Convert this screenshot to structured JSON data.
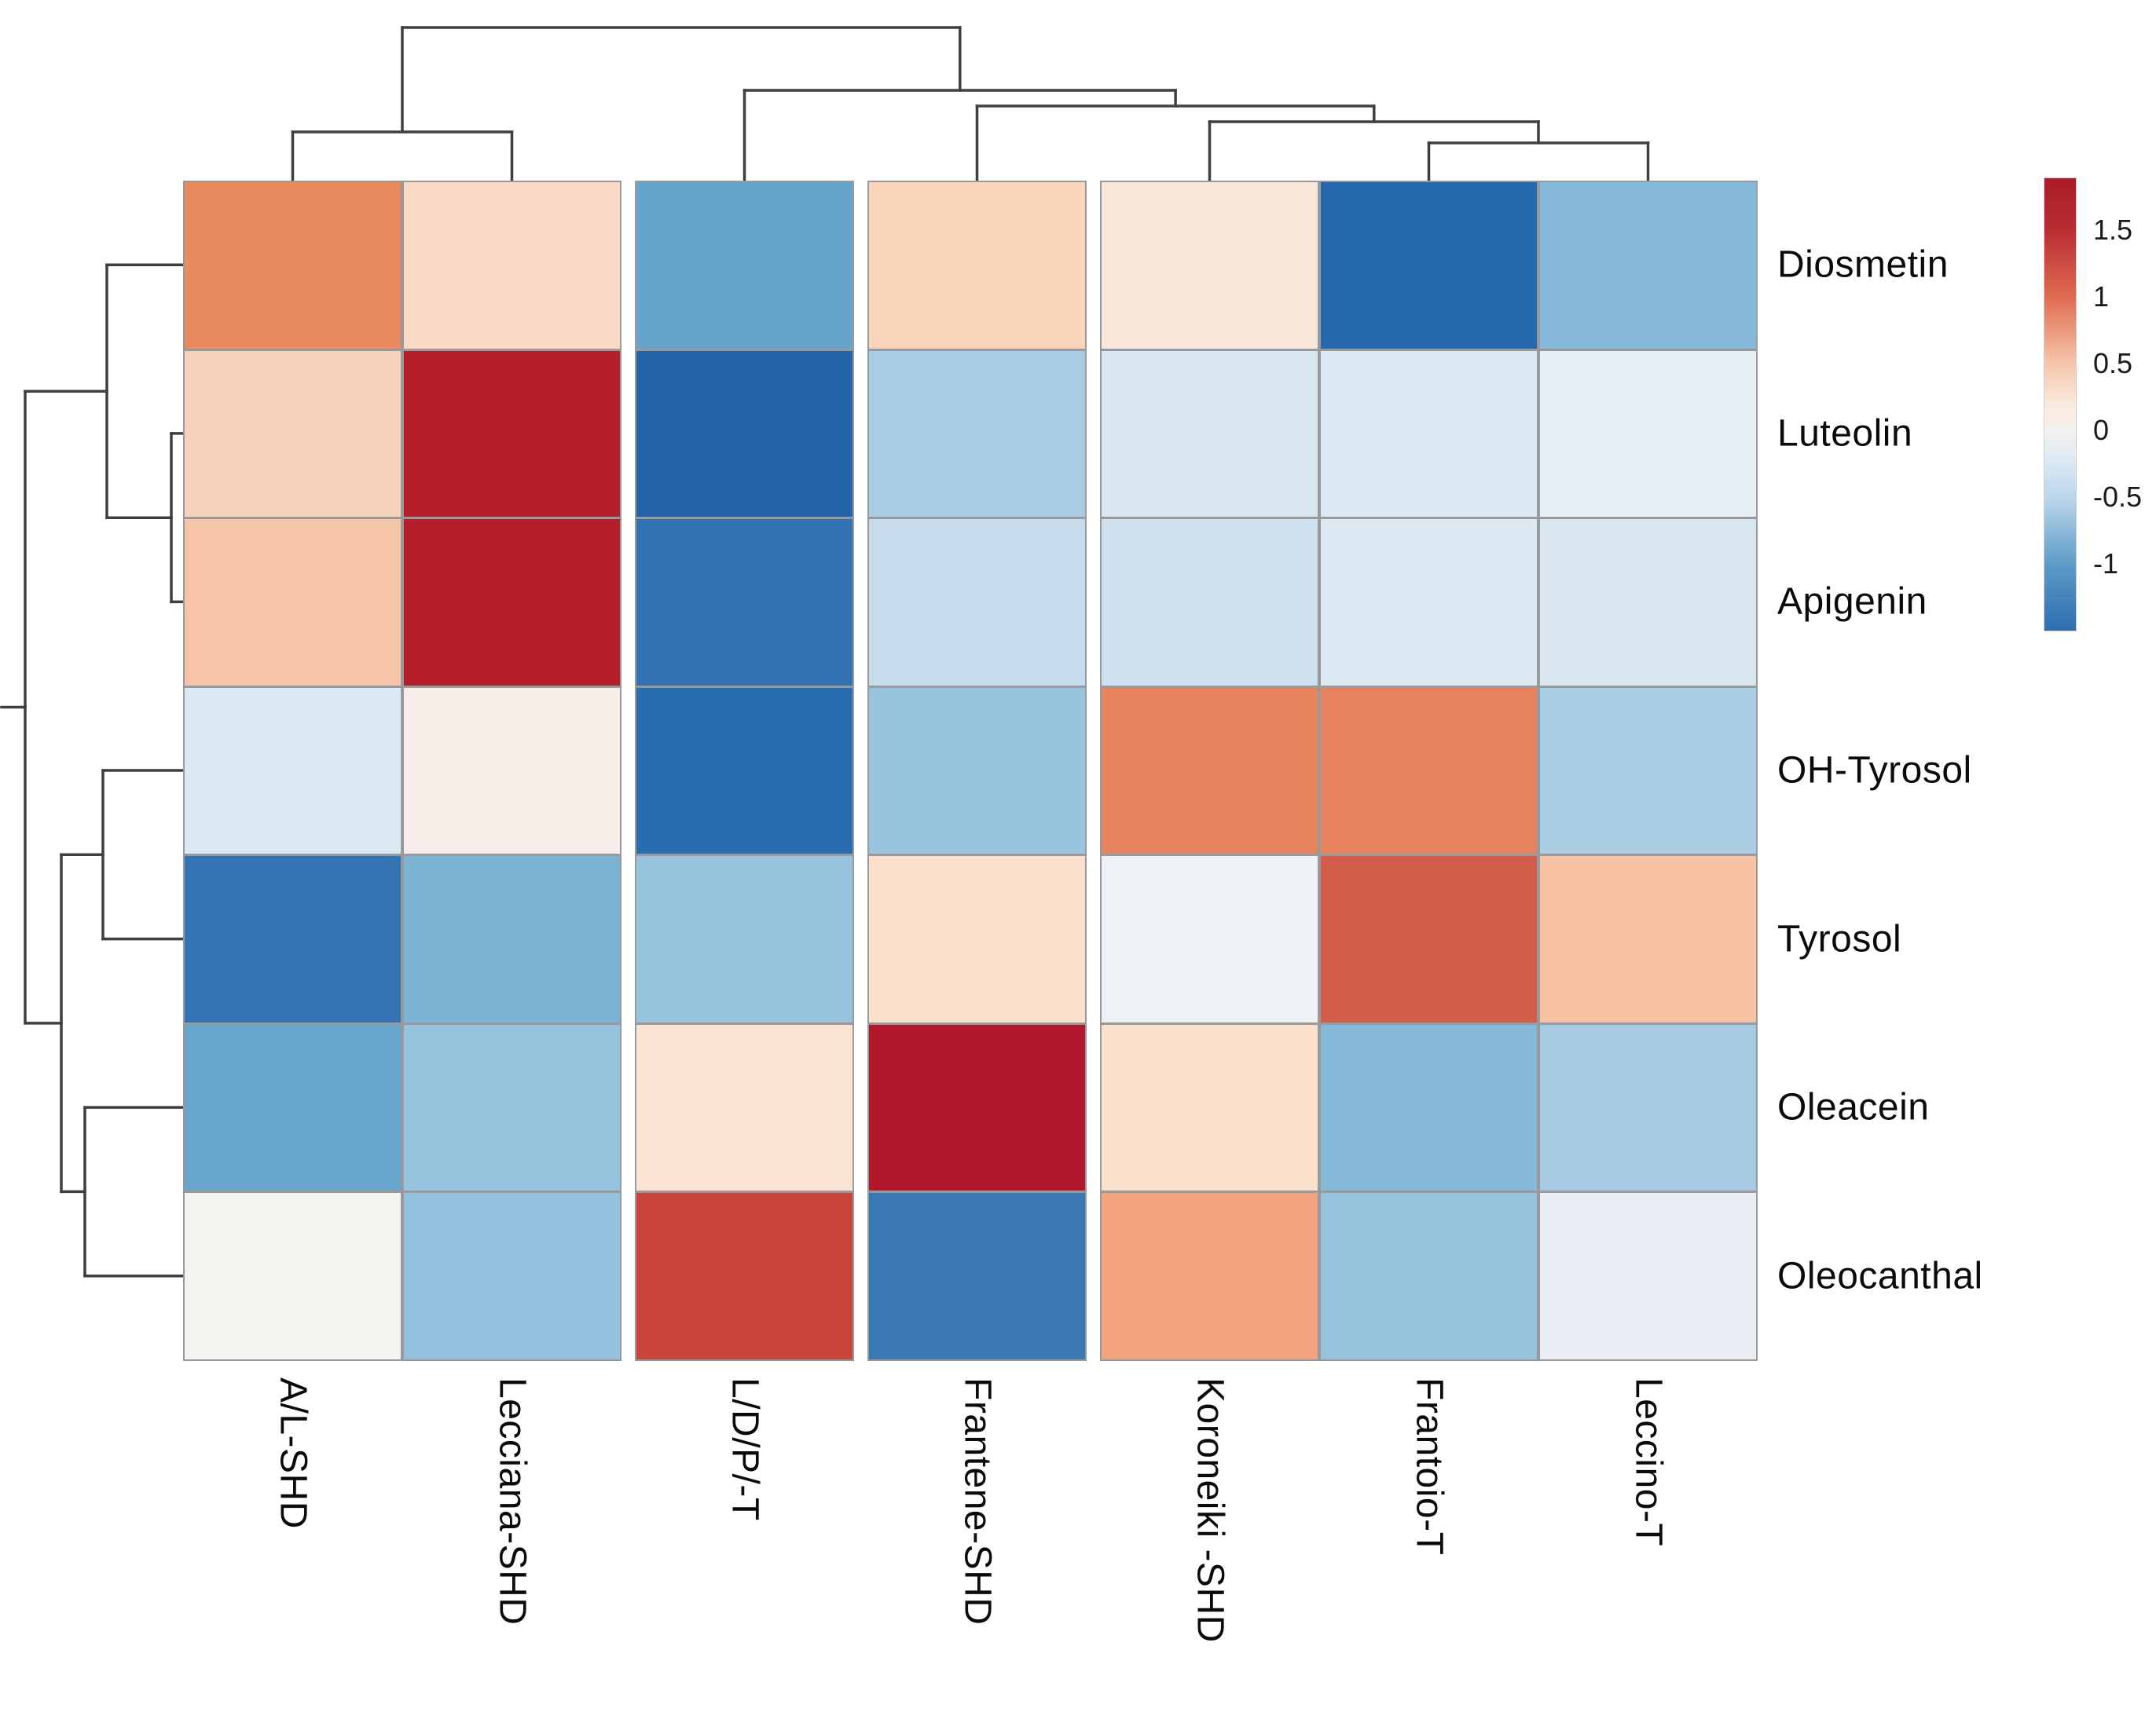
{
  "chart_data": {
    "type": "heatmap",
    "title": "",
    "rows": [
      "Diosmetin",
      "Luteolin",
      "Apigenin",
      "OH-Tyrosol",
      "Tyrosol",
      "Oleacein",
      "Oleocanthal"
    ],
    "columns": [
      "A/L-SHD",
      "Lecciana-SHD",
      "L/D/P/-T",
      "Frantene-SHD",
      "Koroneiki -SHD",
      "Frantoio-T",
      "Leccino-T"
    ],
    "values": [
      [
        0.95,
        0.4,
        -0.95,
        0.45,
        0.2,
        -1.45,
        -0.8
      ],
      [
        0.45,
        1.75,
        -1.5,
        -0.55,
        -0.3,
        -0.25,
        -0.2
      ],
      [
        0.55,
        1.75,
        -1.3,
        -0.4,
        -0.35,
        -0.25,
        -0.3
      ],
      [
        -0.25,
        0.15,
        -1.4,
        -0.65,
        1.0,
        1.0,
        -0.5
      ],
      [
        -1.3,
        -0.85,
        -0.65,
        0.35,
        -0.1,
        1.25,
        0.55
      ],
      [
        -0.95,
        -0.65,
        0.3,
        1.8,
        0.35,
        -0.8,
        -0.55
      ],
      [
        0.0,
        -0.7,
        1.45,
        -1.25,
        0.75,
        -0.65,
        -0.2
      ]
    ],
    "cell_colors": [
      [
        "#e98a5f",
        "#f9d8c4",
        "#66a4cb",
        "#fbd4bc",
        "#f8e7da",
        "#2668ad",
        "#85b8d9"
      ],
      [
        "#f8d2bb",
        "#b51f2c",
        "#2263aa",
        "#a9cce3",
        "#d8e6f0",
        "#dde9f2",
        "#e7eef4"
      ],
      [
        "#f5c4a9",
        "#b51f2c",
        "#3373b3",
        "#c6dcec",
        "#cfe1ee",
        "#dce8f1",
        "#d8e6f0"
      ],
      [
        "#dbe9f2",
        "#f7ece7",
        "#2a6cb0",
        "#99c4df",
        "#e8845d",
        "#e8845d",
        "#abcde4"
      ],
      [
        "#3375b4",
        "#7cb3d5",
        "#97c3de",
        "#fae0cd",
        "#edf2f6",
        "#d25c49",
        "#f7c3a4"
      ],
      [
        "#68a5cc",
        "#96c4df",
        "#fbe3d4",
        "#b2182b",
        "#fadfcb",
        "#86b8d8",
        "#a5cae2"
      ],
      [
        "#f5f3f0",
        "#92c0dd",
        "#c9453c",
        "#3a78b4",
        "#f2a47f",
        "#97c3de",
        "#e8eef4"
      ]
    ],
    "legend_position": "right",
    "colorbar": {
      "colormap": "RdBu",
      "domain_top": 1.89,
      "domain_bottom": -1.5,
      "ticks": [
        {
          "label": "1.5",
          "value": 1.5
        },
        {
          "label": "1",
          "value": 1
        },
        {
          "label": "0.5",
          "value": 0.5
        },
        {
          "label": "0",
          "value": 0
        },
        {
          "label": "-0.5",
          "value": -0.5
        },
        {
          "label": "-1",
          "value": -1
        }
      ],
      "gradient_stops": [
        {
          "pos": 0.0,
          "color": "#a91c27"
        },
        {
          "pos": 0.115,
          "color": "#bb2d33"
        },
        {
          "pos": 0.26,
          "color": "#dd6a4f"
        },
        {
          "pos": 0.41,
          "color": "#f6c6ab"
        },
        {
          "pos": 0.5,
          "color": "#fbe9dd"
        },
        {
          "pos": 0.557,
          "color": "#f3f1ef"
        },
        {
          "pos": 0.62,
          "color": "#ddeaf2"
        },
        {
          "pos": 0.705,
          "color": "#bcd7ea"
        },
        {
          "pos": 0.852,
          "color": "#5d9cc7"
        },
        {
          "pos": 1.0,
          "color": "#2e6db2"
        }
      ]
    },
    "clustering": {
      "column_pairs": [
        [
          "A/L-SHD",
          "Lecciana-SHD"
        ],
        [
          "Frantoio-T",
          "Leccino-T"
        ],
        [
          "Koroneiki -SHD",
          "(Frantoio-T,Leccino-T)"
        ],
        [
          "Frantene-SHD",
          "..."
        ],
        [
          "L/D/P/-T",
          "..."
        ],
        [
          "(A/L-SHD,Lecciana-SHD)",
          "rest"
        ]
      ],
      "row_pairs": [
        [
          "Luteolin",
          "Apigenin"
        ],
        [
          "Diosmetin",
          "(Luteolin,Apigenin)"
        ],
        [
          "OH-Tyrosol",
          "Tyrosol"
        ],
        [
          "Oleacein",
          "Oleocanthal"
        ],
        [
          "(OH-Tyrosol,Tyrosol)",
          "(Oleacein,Oleocanthal)"
        ],
        [
          "top-group",
          "bottom-group"
        ]
      ],
      "column_dendrogram_segments": [
        [
          372.5,
          230,
          372.5,
          168
        ],
        [
          651.5,
          230,
          651.5,
          168
        ],
        [
          372.5,
          168,
          651.5,
          168
        ],
        [
          1818.5,
          230,
          1818.5,
          182
        ],
        [
          2097.5,
          230,
          2097.5,
          182
        ],
        [
          1818.5,
          182,
          2097.5,
          182
        ],
        [
          1539.5,
          230,
          1539.5,
          155
        ],
        [
          1958,
          182,
          1958,
          155
        ],
        [
          1539.5,
          155,
          1958,
          155
        ],
        [
          1243.5,
          230,
          1243.5,
          135
        ],
        [
          1748.8,
          155,
          1748.8,
          135
        ],
        [
          1243.5,
          135,
          1748.8,
          135
        ],
        [
          947.5,
          230,
          947.5,
          115
        ],
        [
          1496.1,
          135,
          1496.1,
          115
        ],
        [
          947.5,
          115,
          1496.1,
          115
        ],
        [
          512,
          168,
          512,
          35
        ],
        [
          1221.8,
          115,
          1221.8,
          35
        ],
        [
          512,
          35,
          1221.8,
          35
        ]
      ],
      "row_dendrogram_segments": [
        [
          233,
          551.9,
          218,
          551.9
        ],
        [
          233,
          766.4,
          218,
          766.4
        ],
        [
          218,
          551.9,
          218,
          766.4
        ],
        [
          233,
          337.3,
          136,
          337.3
        ],
        [
          218,
          659.2,
          136,
          659.2
        ],
        [
          136,
          337.3,
          136,
          659.2
        ],
        [
          233,
          981.0,
          131,
          981.0
        ],
        [
          233,
          1195.6,
          131,
          1195.6
        ],
        [
          131,
          981.0,
          131,
          1195.6
        ],
        [
          233,
          1410.1,
          108,
          1410.1
        ],
        [
          233,
          1624.7,
          108,
          1624.7
        ],
        [
          108,
          1410.1,
          108,
          1624.7
        ],
        [
          131,
          1088.3,
          78,
          1088.3
        ],
        [
          108,
          1517.4,
          78,
          1517.4
        ],
        [
          78,
          1088.3,
          78,
          1517.4
        ],
        [
          136,
          498.2,
          32,
          498.2
        ],
        [
          78,
          1302.9,
          32,
          1302.9
        ],
        [
          32,
          498.2,
          32,
          1302.9
        ],
        [
          32,
          900.5,
          2,
          900.5
        ]
      ],
      "dendrogram_line_color": "#3f3f3f"
    },
    "grid_line_color": "#97999c",
    "background_color": "#ffffff"
  }
}
